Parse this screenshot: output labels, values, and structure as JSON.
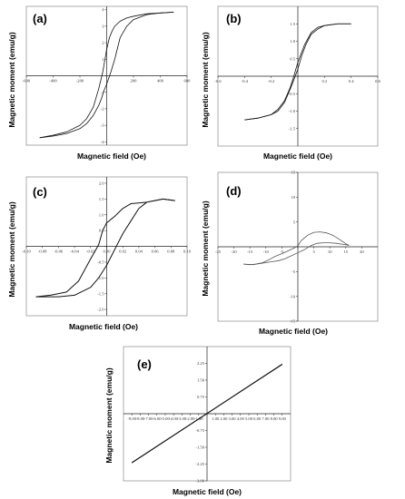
{
  "chart_data": [
    {
      "panel": "(a)",
      "type": "line",
      "xlabel": "Magnetic field (Oe)",
      "ylabel": "Magnetic moment (emu/g)",
      "xlim": [
        -600,
        600
      ],
      "ylim": [
        -4.2,
        4.2
      ],
      "xticks": [
        -600,
        -400,
        -200,
        0,
        200,
        400,
        600
      ],
      "yticks": [
        -4,
        -3,
        -2,
        -1,
        0,
        1,
        2,
        3,
        4
      ],
      "grid": false,
      "series": [
        {
          "values_x": [
            -500,
            -400,
            -300,
            -200,
            -150,
            -100,
            -60,
            -30,
            0,
            20,
            40,
            60,
            100,
            150,
            200,
            300,
            400,
            500
          ],
          "values_y": [
            -3.75,
            -3.6,
            -3.4,
            -3.0,
            -2.6,
            -1.9,
            -0.8,
            0.2,
            1.6,
            2.3,
            2.7,
            3.0,
            3.3,
            3.5,
            3.6,
            3.75,
            3.8,
            3.85
          ]
        },
        {
          "values_x": [
            500,
            400,
            300,
            200,
            150,
            100,
            60,
            30,
            0,
            -20,
            -40,
            -60,
            -100,
            -150,
            -200,
            -300,
            -400,
            -500
          ],
          "values_y": [
            3.85,
            3.8,
            3.7,
            3.4,
            3.0,
            2.3,
            1.0,
            0.2,
            -0.5,
            -0.9,
            -1.4,
            -1.8,
            -2.4,
            -2.9,
            -3.2,
            -3.5,
            -3.65,
            -3.75
          ]
        }
      ]
    },
    {
      "panel": "(b)",
      "type": "line",
      "xlabel": "Magnetic field (Oe)",
      "ylabel": "Magnetic moment (emu/g)",
      "xlim": [
        -0.6,
        0.6
      ],
      "ylim": [
        -2,
        2
      ],
      "xticks": [
        -0.6,
        -0.4,
        -0.2,
        0,
        0.2,
        0.4,
        0.6
      ],
      "yticks": [
        -1.5,
        -1,
        -0.5,
        0,
        0.5,
        1,
        1.5
      ],
      "grid": false,
      "series": [
        {
          "values_x": [
            -0.4,
            -0.3,
            -0.2,
            -0.15,
            -0.1,
            -0.05,
            0,
            0.03,
            0.06,
            0.1,
            0.15,
            0.2,
            0.3,
            0.4
          ],
          "values_y": [
            -1.25,
            -1.2,
            -1.1,
            -1.0,
            -0.75,
            -0.3,
            0.2,
            0.6,
            0.9,
            1.2,
            1.35,
            1.45,
            1.5,
            1.5
          ]
        },
        {
          "values_x": [
            0.4,
            0.3,
            0.2,
            0.15,
            0.1,
            0.05,
            0,
            -0.03,
            -0.06,
            -0.1,
            -0.15,
            -0.2,
            -0.3,
            -0.4
          ],
          "values_y": [
            1.5,
            1.5,
            1.45,
            1.4,
            1.25,
            0.9,
            0.4,
            0.0,
            -0.35,
            -0.7,
            -0.95,
            -1.1,
            -1.2,
            -1.25
          ]
        }
      ]
    },
    {
      "panel": "(c)",
      "type": "line",
      "xlabel": "Magnetic field (Oe)",
      "ylabel": "Magnetic moment (emu/g)",
      "xlim": [
        -0.1,
        0.1
      ],
      "ylim": [
        -2.2,
        2.2
      ],
      "xticks": [
        -0.1,
        -0.08,
        -0.06,
        -0.04,
        -0.02,
        0,
        0.02,
        0.04,
        0.06,
        0.08,
        0.1
      ],
      "yticks": [
        -2,
        -1.5,
        -1,
        -0.5,
        0,
        0.5,
        1,
        1.5,
        2
      ],
      "grid": false,
      "series": [
        {
          "values_x": [
            -0.088,
            -0.07,
            -0.05,
            -0.035,
            -0.02,
            -0.01,
            -0.005,
            0,
            0.003,
            0.005,
            0.01,
            0.02,
            0.03,
            0.05,
            0.07,
            0.085
          ],
          "values_y": [
            -1.6,
            -1.55,
            -1.45,
            -1.1,
            -0.4,
            0.05,
            0.5,
            0.75,
            0.8,
            0.85,
            0.95,
            1.2,
            1.35,
            1.4,
            1.5,
            1.45
          ]
        },
        {
          "values_x": [
            0.085,
            0.07,
            0.05,
            0.04,
            0.03,
            0.02,
            0.01,
            0,
            -0.01,
            -0.02,
            -0.04,
            -0.06,
            -0.075,
            -0.088
          ],
          "values_y": [
            1.45,
            1.5,
            1.4,
            1.2,
            0.8,
            0.4,
            -0.1,
            -0.6,
            -1.0,
            -1.3,
            -1.55,
            -1.6,
            -1.6,
            -1.6
          ]
        }
      ]
    },
    {
      "panel": "(d)",
      "type": "line",
      "xlabel": "Magnetic field (Oe)",
      "ylabel": "Magnetic moment (emu/g)",
      "xlim": [
        -25,
        25
      ],
      "ylim": [
        -15,
        15
      ],
      "xticks": [
        -25,
        -20,
        -15,
        -10,
        -5,
        0,
        5,
        10,
        15,
        20
      ],
      "yticks": [
        -15,
        -10,
        -5,
        0,
        5,
        10,
        15
      ],
      "grid": false,
      "series": [
        {
          "values_x": [
            -17,
            -14,
            -11,
            -9,
            -7,
            -5,
            -3,
            -1,
            0,
            1,
            3,
            5,
            7,
            9,
            11,
            13,
            15,
            16
          ],
          "values_y": [
            -3.5,
            -3.6,
            -3.2,
            -2.6,
            -1.9,
            -1.4,
            -0.8,
            -0.2,
            0.2,
            1.2,
            2.3,
            2.9,
            3.0,
            2.8,
            2.3,
            1.5,
            0.6,
            0.3
          ]
        },
        {
          "values_x": [
            16,
            14,
            12,
            10,
            8,
            6,
            4,
            2,
            0,
            -2,
            -4,
            -6,
            -8,
            -10,
            -13,
            -15,
            -17
          ],
          "values_y": [
            0.3,
            0.5,
            0.7,
            0.8,
            0.8,
            0.7,
            0.2,
            -0.6,
            -1.2,
            -1.8,
            -2.4,
            -2.8,
            -3.0,
            -3.2,
            -3.5,
            -3.6,
            -3.5
          ]
        }
      ]
    },
    {
      "panel": "(e)",
      "type": "line",
      "xlabel": "Magnetic field (Oe)",
      "ylabel": "Magnetic moment (emu/g)",
      "xlim": [
        -10,
        10
      ],
      "ylim": [
        -3,
        3
      ],
      "xticks": [
        -9,
        -8,
        -7,
        -6,
        -5,
        -4,
        -3,
        -2,
        -1,
        0,
        1,
        2,
        3,
        4,
        5,
        6,
        7,
        8,
        9
      ],
      "yticks": [
        -3,
        -2.25,
        -1.5,
        -0.75,
        0,
        0.75,
        1.5,
        2.25
      ],
      "grid": false,
      "series": [
        {
          "values_x": [
            -9,
            9
          ],
          "values_y": [
            -2.2,
            2.2
          ]
        },
        {
          "values_x": [
            9,
            -9
          ],
          "values_y": [
            2.22,
            -2.18
          ]
        }
      ]
    }
  ]
}
